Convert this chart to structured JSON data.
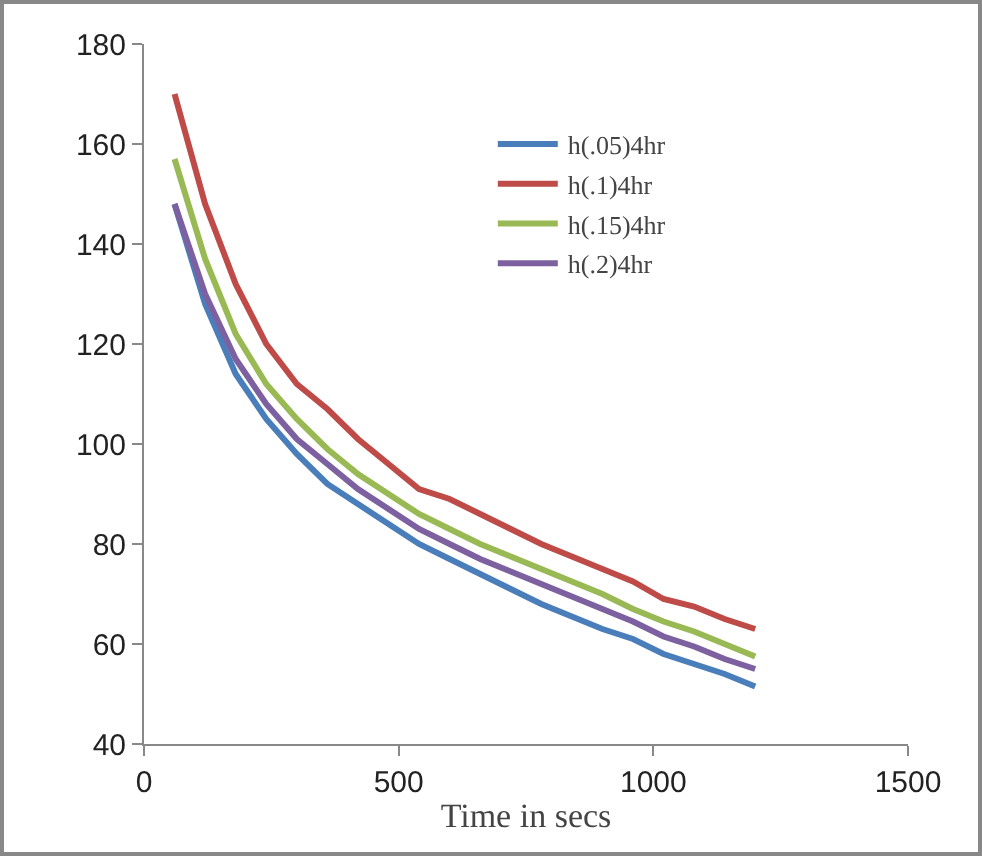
{
  "chart_data": {
    "type": "line",
    "xlabel": "Time in secs",
    "x": [
      60,
      120,
      180,
      240,
      300,
      360,
      420,
      480,
      540,
      600,
      660,
      720,
      780,
      840,
      900,
      960,
      1020,
      1080,
      1140,
      1200
    ],
    "series": [
      {
        "name": "h(.05)4hr",
        "color": "#4a7ebb",
        "values": [
          148,
          128,
          114,
          105,
          98,
          92,
          88,
          84,
          80,
          77,
          74,
          71,
          68,
          65.5,
          63,
          61,
          58,
          56,
          54,
          51.5
        ]
      },
      {
        "name": "h(.1)4hr",
        "color": "#be4b48",
        "values": [
          170,
          148,
          132,
          120,
          112,
          107,
          101,
          96,
          91,
          89,
          86,
          83,
          80,
          77.5,
          75,
          72.5,
          69,
          67.5,
          65,
          63
        ]
      },
      {
        "name": "h(.15)4hr",
        "color": "#98b954",
        "values": [
          157,
          137,
          122,
          112,
          105,
          99,
          94,
          90,
          86,
          83,
          80,
          77.5,
          75,
          72.5,
          70,
          67,
          64.5,
          62.5,
          60,
          57.5
        ]
      },
      {
        "name": "h(.2)4hr",
        "color": "#7d60a0",
        "values": [
          148,
          130,
          117,
          108,
          101,
          96,
          91,
          87,
          83,
          80,
          77,
          74.5,
          72,
          69.5,
          67,
          64.5,
          61.5,
          59.5,
          57,
          55
        ]
      }
    ],
    "xlim": [
      0,
      1500
    ],
    "xticks": [
      0,
      500,
      1000,
      1500
    ],
    "ylim": [
      40,
      180
    ],
    "yticks": [
      40,
      60,
      80,
      100,
      120,
      140,
      160,
      180
    ],
    "grid": false,
    "legend": "top right",
    "marker": "none",
    "line_style": "solid"
  }
}
